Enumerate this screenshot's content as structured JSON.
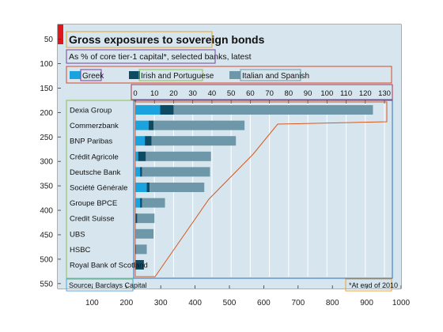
{
  "chart_data": {
    "type": "bar",
    "title": "Gross exposures to sovereign bonds",
    "subtitle": "As % of core tier-1 capital*, selected banks, latest",
    "source": "Source: Barclays Capital",
    "footnote": "*At end of 2010",
    "stacked": true,
    "orientation": "horizontal",
    "xlim": [
      0,
      130
    ],
    "xticks": [
      "0",
      "10",
      "20",
      "30",
      "40",
      "50",
      "60",
      "70",
      "80",
      "90",
      "100",
      "110",
      "120",
      "130"
    ],
    "legend_position": "top",
    "categories": [
      "Dexia Group",
      "Commerzbank",
      "BNP Paribas",
      "Crédit Agricole",
      "Deutsche Bank",
      "Société Générale",
      "Groupe BPCE",
      "Credit Suisse",
      "UBS",
      "HSBC",
      "Royal Bank of Scotland"
    ],
    "series": [
      {
        "name": "Greek",
        "color": "#1aa3df",
        "values": [
          13,
          7,
          5,
          1.5,
          2.5,
          6,
          2.5,
          0,
          0,
          0,
          0
        ]
      },
      {
        "name": "Irish and Portuguese",
        "color": "#0d4a63",
        "values": [
          7,
          2.5,
          3.5,
          4,
          1,
          1.5,
          1,
          1,
          0,
          0.5,
          4.5
        ]
      },
      {
        "name": "Italian and Spanish",
        "color": "#6e98aa",
        "values": [
          104,
          47.5,
          44,
          34,
          35.5,
          28.5,
          12,
          9,
          9.5,
          5.5,
          0
        ]
      }
    ],
    "outer_axes": {
      "xlim": [
        0,
        1000
      ],
      "ylim": [
        560,
        20
      ],
      "xticks": [
        "100",
        "200",
        "300",
        "400",
        "500",
        "600",
        "700",
        "800",
        "900",
        "1000"
      ],
      "yticks": [
        "50",
        "100",
        "150",
        "200",
        "250",
        "300",
        "350",
        "400",
        "450",
        "500",
        "550"
      ]
    },
    "colors": {
      "panel_bg": "#d7e6ee",
      "title_rect": "#e6a230",
      "subtitle_rect": "#7b3fa0",
      "legend_rect": "#d24a2a",
      "xaxis_rect": "#a8334f",
      "labels_rect": "#8cc04f",
      "bars_rect": "#2e6fc0",
      "source_rect": "#48a6e0",
      "footnote_rect": "#e6a230",
      "outline_poly": "#d9581e",
      "corner_mark": "#e0161b"
    }
  }
}
